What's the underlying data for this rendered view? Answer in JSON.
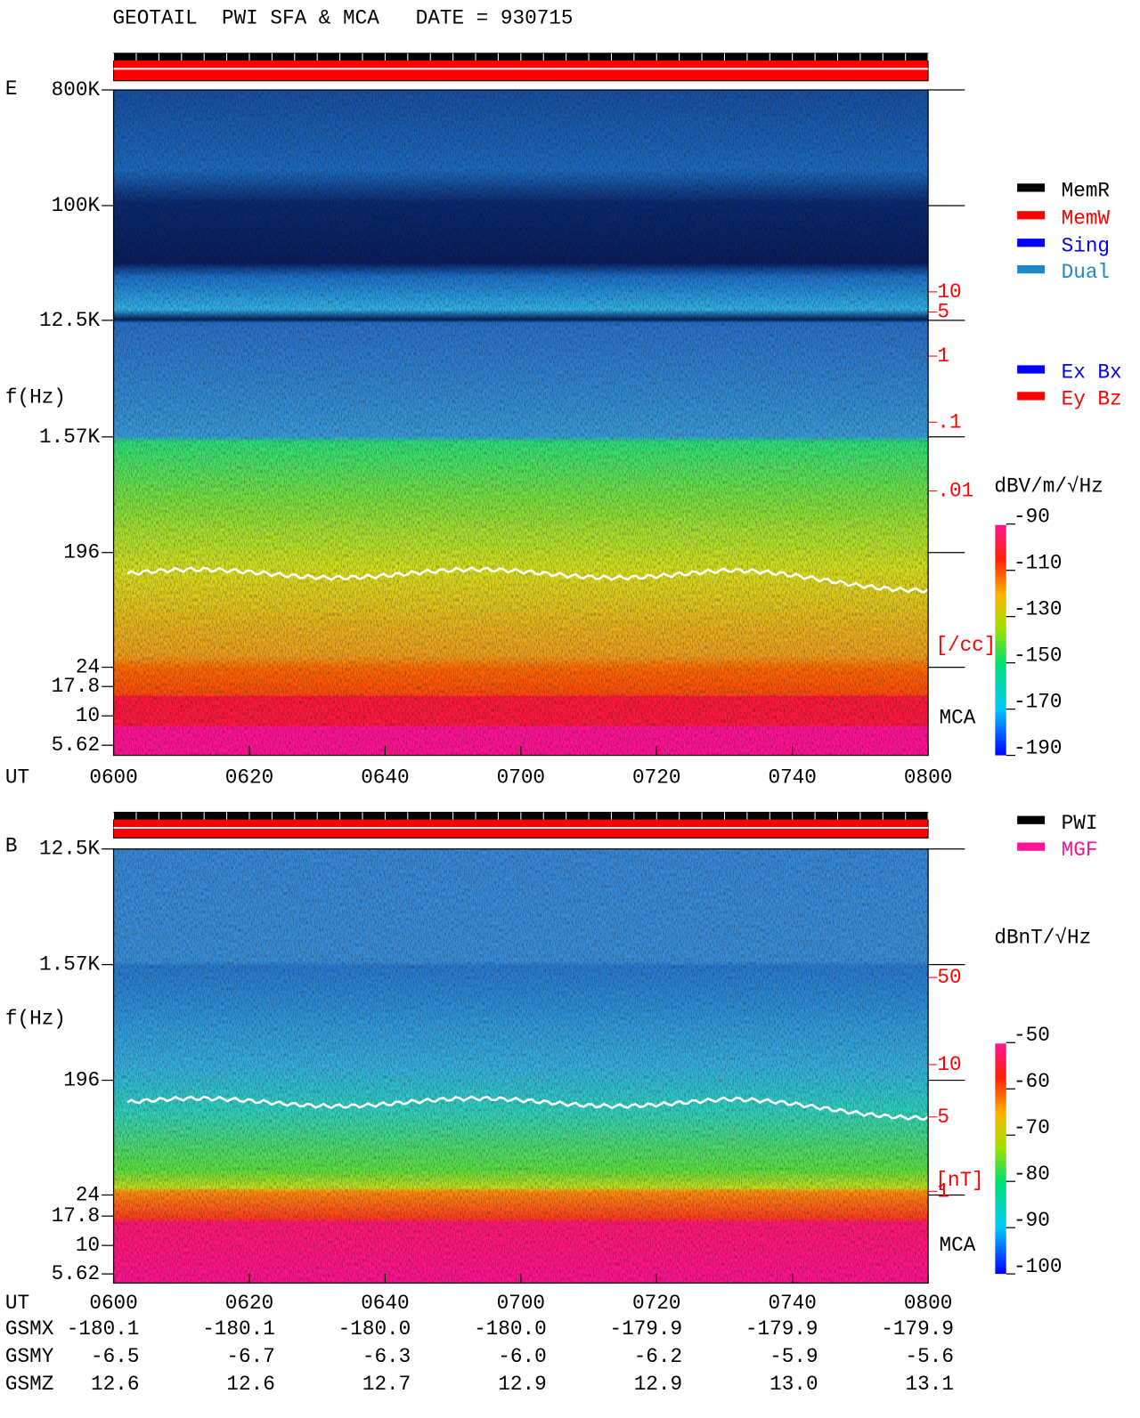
{
  "header": {
    "title": "GEOTAIL  PWI SFA & MCA   DATE = 930715"
  },
  "panels": [
    {
      "label": "E",
      "y_label": "f(Hz)",
      "freq_ticks": [
        "800K",
        "100K",
        "12.5K",
        "1.57K",
        "196",
        "24",
        "17.8",
        "10",
        "5.62"
      ],
      "time_label": "UT",
      "time_ticks": [
        "0600",
        "0620",
        "0640",
        "0700",
        "0720",
        "0740",
        "0800"
      ],
      "right_scale": [
        "10",
        "5",
        "1",
        ".1",
        ".01"
      ],
      "right_unit": "[/cc]",
      "mca": "MCA",
      "legend": [
        [
          {
            "name": "MemR",
            "color": "#000000"
          },
          {
            "name": "MemW",
            "color": "#ff0000"
          },
          {
            "name": "Sing",
            "color": "#0000ff"
          },
          {
            "name": "Dual",
            "color": "#1e88c8"
          }
        ],
        [
          {
            "name": "Ex Bx",
            "color": "#0000ff"
          },
          {
            "name": "Ey Bz",
            "color": "#ff0000"
          }
        ]
      ],
      "colorbar_unit": "dBV/m/√Hz",
      "colorbar_ticks": [
        -90,
        -110,
        -130,
        -150,
        -170,
        -190
      ]
    },
    {
      "label": "B",
      "y_label": "f(Hz)",
      "freq_ticks": [
        "12.5K",
        "1.57K",
        "196",
        "24",
        "17.8",
        "10",
        "5.62"
      ],
      "time_label": "UT",
      "time_ticks": [
        "0600",
        "0620",
        "0640",
        "0700",
        "0720",
        "0740",
        "0800"
      ],
      "right_scale": [
        "50",
        "10",
        "5",
        "1"
      ],
      "right_unit": "[nT]",
      "mca": "MCA",
      "legend": [
        [
          {
            "name": "PWI",
            "color": "#000000"
          },
          {
            "name": "MGF",
            "color": "#ff1493"
          }
        ]
      ],
      "colorbar_unit": "dBnT/√Hz",
      "colorbar_ticks": [
        -50,
        -60,
        -70,
        -80,
        -90,
        -100
      ]
    }
  ],
  "orbit": [
    {
      "label": "GSMX",
      "values": [
        "-180.1",
        "-180.1",
        "-180.0",
        "-180.0",
        "-179.9",
        "-179.9",
        "-179.9"
      ]
    },
    {
      "label": "GSMY",
      "values": [
        "-6.5",
        "-6.7",
        "-6.3",
        "-6.0",
        "-6.2",
        "-5.9",
        "-5.6"
      ]
    },
    {
      "label": "GSMZ",
      "values": [
        "12.6",
        "12.6",
        "12.7",
        "12.9",
        "12.9",
        "13.0",
        "13.1"
      ]
    }
  ]
}
